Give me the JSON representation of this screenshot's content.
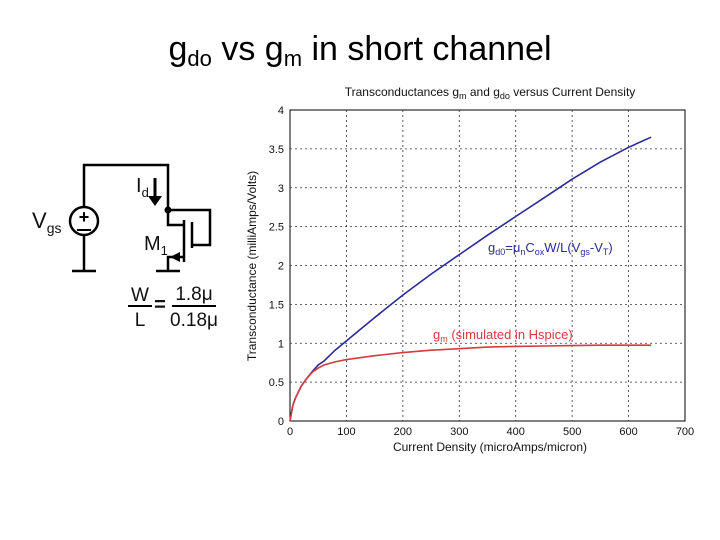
{
  "slide": {
    "title": {
      "g1": "g",
      "g1_sub": "do",
      "mid": " vs g",
      "m_sub": "m",
      "rest": " in short channel"
    }
  },
  "circuit": {
    "vgs_main": "V",
    "vgs_sub": "gs",
    "id_main": "I",
    "id_sub": "d",
    "m1_main": "M",
    "m1_sub": "1",
    "w_label": "W",
    "l_label": "L",
    "equals": "=",
    "w_value": "1.8μ",
    "l_value": "0.18μ"
  },
  "chart_data": {
    "type": "line",
    "title": {
      "a": "Transconductances g",
      "a_sub": "m",
      "b": " and g",
      "b_sub": "do",
      "c": " versus Current Density"
    },
    "xlabel": "Current Density (microAmps/micron)",
    "ylabel": "Transconductance (milliAmps/Volts)",
    "xlim": [
      0,
      700
    ],
    "ylim": [
      0,
      4
    ],
    "x_ticks": [
      "0",
      "100",
      "200",
      "300",
      "400",
      "500",
      "600",
      "700"
    ],
    "y_ticks": [
      "0",
      "0.5",
      "1",
      "1.5",
      "2",
      "2.5",
      "3",
      "3.5",
      "4"
    ],
    "grid": true,
    "series": [
      {
        "id": "gd0",
        "color": "#2a2a9a",
        "x": [
          0,
          5,
          10,
          20,
          30,
          40,
          50,
          60,
          80,
          100,
          150,
          200,
          250,
          300,
          350,
          400,
          450,
          500,
          550,
          600,
          640
        ],
        "y": [
          0,
          0.2,
          0.3,
          0.45,
          0.55,
          0.64,
          0.72,
          0.77,
          0.91,
          1.03,
          1.33,
          1.62,
          1.89,
          2.14,
          2.39,
          2.63,
          2.87,
          3.11,
          3.33,
          3.52,
          3.65
        ]
      },
      {
        "id": "gm",
        "color": "#d63b3b",
        "x": [
          0,
          5,
          10,
          20,
          30,
          40,
          50,
          60,
          80,
          100,
          150,
          200,
          250,
          300,
          350,
          400,
          450,
          500,
          550,
          600,
          640
        ],
        "y": [
          0,
          0.2,
          0.3,
          0.45,
          0.55,
          0.63,
          0.68,
          0.72,
          0.76,
          0.79,
          0.84,
          0.88,
          0.91,
          0.93,
          0.95,
          0.96,
          0.965,
          0.97,
          0.975,
          0.975,
          0.975
        ]
      }
    ],
    "annotations": {
      "gd0": {
        "a": "g",
        "a_sub": "d0",
        "b": "=μ",
        "b_sub": "n",
        "c": "C",
        "c_sub": "ox",
        "d": "W/L(V",
        "d_sub": "gs",
        "e": "-V",
        "e_sub": "T",
        "f": ")",
        "color": "#2a2a9a"
      },
      "gm": {
        "a": "g",
        "a_sub": "m",
        "b": " (simulated in Hspice)",
        "color": "#d63b3b"
      }
    }
  }
}
